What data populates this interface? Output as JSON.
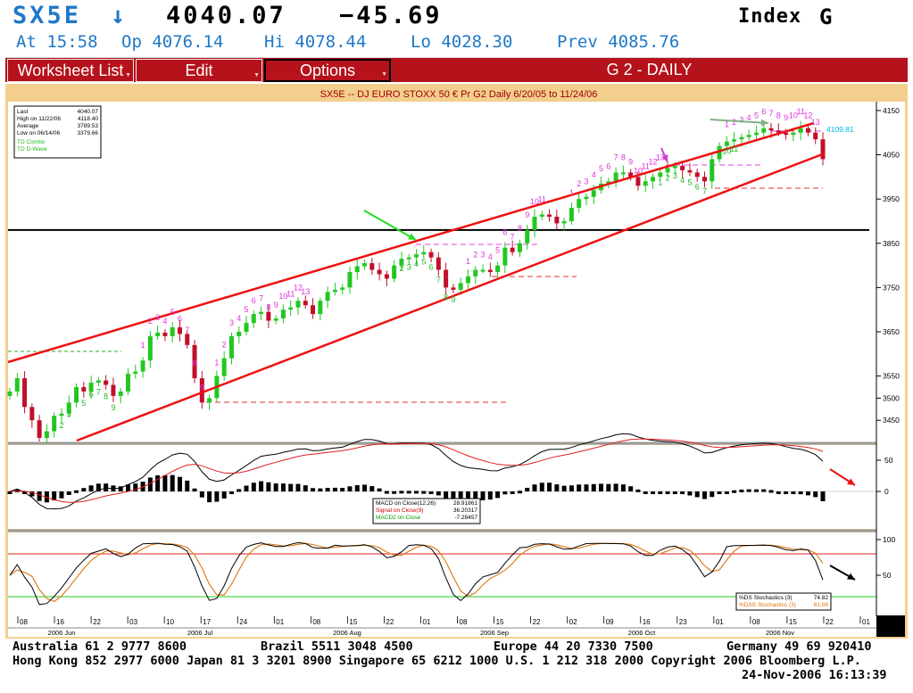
{
  "header": {
    "ticker": "SX5E",
    "direction": "↓",
    "last": "4040.07",
    "change": "−45.69",
    "index_label": "Index",
    "menu_key": "G",
    "time": "At 15:58",
    "open": "Op 4076.14",
    "high": "Hi 4078.44",
    "low": "Lo 4028.30",
    "prev": "Prev 4085.76"
  },
  "menu": {
    "worksheet_list": "Worksheet List",
    "edit": "Edit",
    "options": "Options",
    "screen_title": "G  2 - DAILY"
  },
  "chart_title": "SX5E -- DJ EURO STOXX 50 € Pr G2 Daily 6/20/05 to 11/24/06",
  "info_box": {
    "rows": [
      {
        "label": "Last",
        "value": "4040.07"
      },
      {
        "label": "High on  11/22/06",
        "value": "4118.40"
      },
      {
        "label": "Average",
        "value": "3789.53"
      },
      {
        "label": "Low on  06/14/06",
        "value": "3379.66"
      }
    ],
    "studies": [
      "TD Combo",
      "TD D-Wave"
    ]
  },
  "macd_legend": [
    {
      "label": "MACD on Close(12,26)",
      "value": "28.91861",
      "color": "#000000"
    },
    {
      "label": "Signal on Close(9)",
      "value": "36.20317",
      "color": "#d00000"
    },
    {
      "label": "MACD2 on Close",
      "value": "-7.28457",
      "color": "#00a000"
    }
  ],
  "stoch_legend": [
    {
      "label": "%DS Stochastics (3)",
      "value": "74.82",
      "color": "#000000"
    },
    {
      "label": "%DSS Stochastics (3)",
      "value": "81.09",
      "color": "#e07000"
    }
  ],
  "chart_data": {
    "type": "candlestick",
    "title": "SX5E -- DJ EURO STOXX 50 € Pr G2 Daily 6/20/05 to 11/24/06",
    "price_axis": {
      "ticks": [
        3450,
        3500,
        3550,
        3650,
        3750,
        3850,
        3950,
        4050,
        4150
      ],
      "range": [
        3398,
        4170
      ]
    },
    "price_flag": "4109.81",
    "horizontal_line": 3880,
    "x_axis": {
      "day_ticks": [
        "08",
        "16",
        "22",
        "03",
        "10",
        "17",
        "24",
        "01",
        "08",
        "15",
        "22",
        "01",
        "08",
        "15",
        "22",
        "02",
        "09",
        "16",
        "23",
        "01",
        "08",
        "15",
        "22",
        "01"
      ],
      "months": [
        "2006 Jun",
        "2006 Jul",
        "2006 Aug",
        "2006 Sep",
        "2006 Oct",
        "2006 Nov"
      ]
    },
    "closes": [
      3515,
      3545,
      3480,
      3450,
      3410,
      3425,
      3460,
      3465,
      3490,
      3525,
      3515,
      3535,
      3540,
      3530,
      3505,
      3515,
      3555,
      3560,
      3585,
      3640,
      3648,
      3640,
      3660,
      3645,
      3620,
      3545,
      3490,
      3500,
      3550,
      3590,
      3640,
      3650,
      3670,
      3690,
      3695,
      3675,
      3680,
      3700,
      3705,
      3720,
      3710,
      3690,
      3720,
      3740,
      3745,
      3750,
      3785,
      3798,
      3805,
      3790,
      3780,
      3770,
      3800,
      3815,
      3818,
      3825,
      3830,
      3818,
      3790,
      3750,
      3745,
      3760,
      3775,
      3790,
      3790,
      3785,
      3800,
      3840,
      3830,
      3850,
      3880,
      3910,
      3915,
      3910,
      3895,
      3900,
      3930,
      3950,
      3955,
      3970,
      3985,
      3990,
      4010,
      4010,
      4000,
      3980,
      3990,
      4000,
      4010,
      4020,
      4025,
      4015,
      4010,
      4000,
      3990,
      4040,
      4070,
      4080,
      4085,
      4090,
      4095,
      4100,
      4110,
      4105,
      4100,
      4095,
      4100,
      4110,
      4100,
      4085,
      4040
    ],
    "macd_axis": {
      "ticks": [
        50,
        0
      ]
    },
    "stoch_axis": {
      "ticks": [
        100,
        50
      ]
    },
    "stoch_levels": [
      80,
      20
    ],
    "td_count_labels": [
      "1",
      "2",
      "3",
      "4",
      "5",
      "6",
      "7",
      "8",
      "9",
      "10",
      "11",
      "12",
      "13"
    ]
  },
  "footer": {
    "line1_a": "Australia 61 2 9777 8600",
    "line1_b": "Brazil 5511 3048 4500",
    "line1_c": "Europe 44 20 7330 7500",
    "line1_d": "Germany 49 69 920410",
    "line2": "Hong Kong 852 2977 6000 Japan 81 3 3201 8900 Singapore 65 6212 1000 U.S. 1 212 318 2000 Copyright 2006 Bloomberg L.P.",
    "line3": "24-Nov-2006 16:13:39"
  }
}
